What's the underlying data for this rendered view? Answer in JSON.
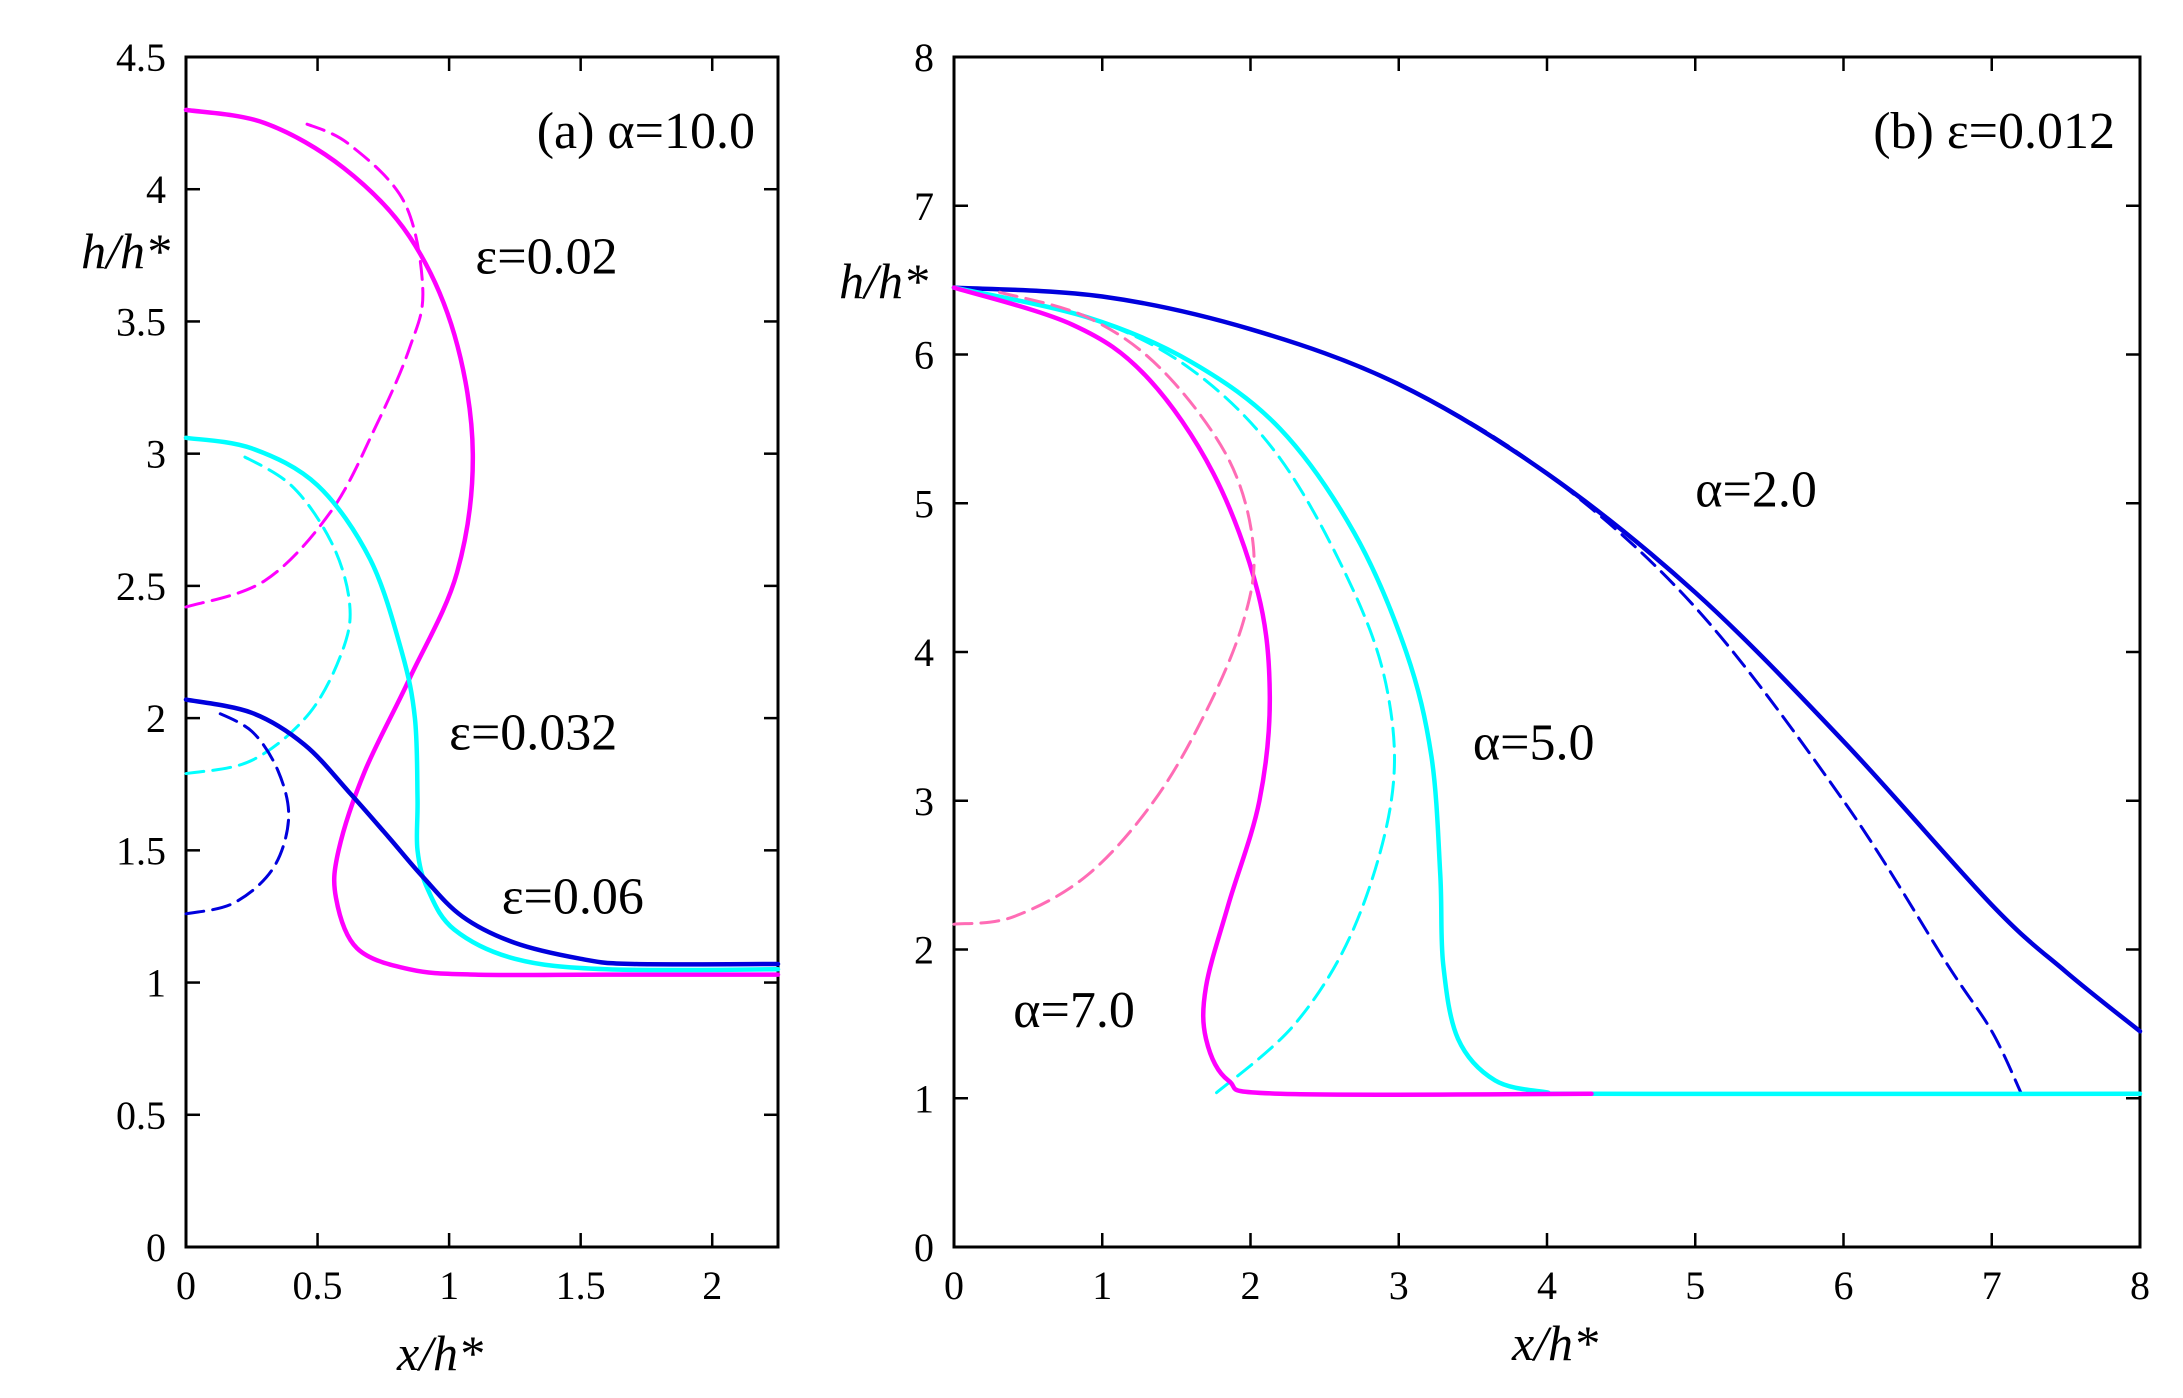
{
  "chart_data": [
    {
      "type": "line",
      "panel_label": "(a) α=10.0",
      "xlabel": "x/h*",
      "ylabel": "h/h*",
      "xlim": [
        0,
        2.25
      ],
      "ylim": [
        0,
        4.5
      ],
      "x_ticks": [
        "0",
        "0.5",
        "1",
        "1.5",
        "2"
      ],
      "y_ticks": [
        "0",
        "0.5",
        "1",
        "1.5",
        "2",
        "2.5",
        "3",
        "3.5",
        "4",
        "4.5"
      ],
      "x_tick_values": [
        0,
        0.5,
        1,
        1.5,
        2
      ],
      "y_tick_values": [
        0,
        0.5,
        1,
        1.5,
        2,
        2.5,
        3,
        3.5,
        4,
        4.5
      ],
      "annotations": [
        {
          "text": "ε=0.02",
          "x": 1.1,
          "y": 3.75
        },
        {
          "text": "ε=0.032",
          "x": 1.0,
          "y": 1.95
        },
        {
          "text": "ε=0.06",
          "x": 1.2,
          "y": 1.33
        }
      ],
      "series": [
        {
          "color": "#ff00ff",
          "style": "solid",
          "points": [
            [
              0,
              4.3
            ],
            [
              0.3,
              4.25
            ],
            [
              0.6,
              4.08
            ],
            [
              0.85,
              3.82
            ],
            [
              1.02,
              3.45
            ],
            [
              1.09,
              3.0
            ],
            [
              1.03,
              2.55
            ],
            [
              0.85,
              2.15
            ],
            [
              0.68,
              1.8
            ],
            [
              0.58,
              1.5
            ],
            [
              0.57,
              1.32
            ],
            [
              0.65,
              1.13
            ],
            [
              0.85,
              1.05
            ],
            [
              1.1,
              1.03
            ],
            [
              1.6,
              1.03
            ],
            [
              2.25,
              1.03
            ]
          ]
        },
        {
          "color": "#ff00ff",
          "style": "dashed",
          "points": [
            [
              0,
              2.42
            ],
            [
              0.3,
              2.52
            ],
            [
              0.55,
              2.78
            ],
            [
              0.72,
              3.1
            ],
            [
              0.85,
              3.4
            ],
            [
              0.9,
              3.62
            ],
            [
              0.83,
              3.95
            ],
            [
              0.62,
              4.17
            ],
            [
              0.45,
              4.25
            ]
          ]
        },
        {
          "color": "#00ffff",
          "style": "solid",
          "points": [
            [
              0,
              3.06
            ],
            [
              0.25,
              3.02
            ],
            [
              0.5,
              2.88
            ],
            [
              0.7,
              2.6
            ],
            [
              0.82,
              2.25
            ],
            [
              0.87,
              2.0
            ],
            [
              0.88,
              1.7
            ],
            [
              0.88,
              1.5
            ],
            [
              0.92,
              1.35
            ],
            [
              1.02,
              1.2
            ],
            [
              1.25,
              1.09
            ],
            [
              1.6,
              1.05
            ],
            [
              2.25,
              1.05
            ]
          ]
        },
        {
          "color": "#00ffff",
          "style": "dashed",
          "points": [
            [
              0,
              1.79
            ],
            [
              0.25,
              1.84
            ],
            [
              0.47,
              2.02
            ],
            [
              0.6,
              2.27
            ],
            [
              0.62,
              2.45
            ],
            [
              0.55,
              2.67
            ],
            [
              0.4,
              2.88
            ],
            [
              0.2,
              3.0
            ]
          ]
        },
        {
          "color": "#0000dd",
          "style": "solid",
          "points": [
            [
              0,
              2.07
            ],
            [
              0.25,
              2.02
            ],
            [
              0.45,
              1.9
            ],
            [
              0.62,
              1.72
            ],
            [
              0.77,
              1.55
            ],
            [
              0.9,
              1.4
            ],
            [
              1.05,
              1.25
            ],
            [
              1.25,
              1.15
            ],
            [
              1.5,
              1.09
            ],
            [
              1.7,
              1.07
            ],
            [
              2.25,
              1.07
            ]
          ]
        },
        {
          "color": "#0000dd",
          "style": "dashed",
          "points": [
            [
              0,
              1.26
            ],
            [
              0.18,
              1.3
            ],
            [
              0.33,
              1.43
            ],
            [
              0.39,
              1.62
            ],
            [
              0.35,
              1.8
            ],
            [
              0.25,
              1.95
            ],
            [
              0.1,
              2.03
            ]
          ]
        }
      ]
    },
    {
      "type": "line",
      "panel_label": "(b) ε=0.012",
      "xlabel": "x/h*",
      "ylabel": "h/h*",
      "xlim": [
        0,
        8
      ],
      "ylim": [
        0,
        8
      ],
      "x_ticks": [
        "0",
        "1",
        "2",
        "3",
        "4",
        "5",
        "6",
        "7",
        "8"
      ],
      "y_ticks": [
        "0",
        "1",
        "2",
        "3",
        "4",
        "5",
        "6",
        "7",
        "8"
      ],
      "x_tick_values": [
        0,
        1,
        2,
        3,
        4,
        5,
        6,
        7,
        8
      ],
      "y_tick_values": [
        0,
        1,
        2,
        3,
        4,
        5,
        6,
        7,
        8
      ],
      "annotations": [
        {
          "text": "α=2.0",
          "x": 5.0,
          "y": 5.1
        },
        {
          "text": "α=5.0",
          "x": 3.5,
          "y": 3.4
        },
        {
          "text": "α=7.0",
          "x": 0.4,
          "y": 1.6
        }
      ],
      "series": [
        {
          "color": "#0000dd",
          "style": "solid",
          "points": [
            [
              0,
              6.45
            ],
            [
              1,
              6.39
            ],
            [
              2,
              6.17
            ],
            [
              3,
              5.8
            ],
            [
              4,
              5.2
            ],
            [
              5,
              4.4
            ],
            [
              6,
              3.4
            ],
            [
              7,
              2.3
            ],
            [
              7.5,
              1.85
            ],
            [
              8,
              1.45
            ]
          ]
        },
        {
          "color": "#0000dd",
          "style": "dashed",
          "points": [
            [
              0,
              6.45
            ],
            [
              1,
              6.39
            ],
            [
              2,
              6.17
            ],
            [
              3,
              5.8
            ],
            [
              4,
              5.2
            ],
            [
              5,
              4.3
            ],
            [
              6,
              3.0
            ],
            [
              6.7,
              1.9
            ],
            [
              7.0,
              1.45
            ],
            [
              7.2,
              1.03
            ]
          ]
        },
        {
          "color": "#00ffff",
          "style": "solid",
          "points": [
            [
              0,
              6.45
            ],
            [
              0.9,
              6.25
            ],
            [
              1.6,
              5.95
            ],
            [
              2.2,
              5.5
            ],
            [
              2.7,
              4.8
            ],
            [
              3.05,
              4.0
            ],
            [
              3.22,
              3.3
            ],
            [
              3.28,
              2.5
            ],
            [
              3.3,
              1.9
            ],
            [
              3.4,
              1.4
            ],
            [
              3.65,
              1.12
            ],
            [
              4.0,
              1.04
            ],
            [
              4.2,
              1.03
            ],
            [
              8,
              1.03
            ]
          ]
        },
        {
          "color": "#00ffff",
          "style": "dashed",
          "points": [
            [
              0,
              6.45
            ],
            [
              0.9,
              6.25
            ],
            [
              1.6,
              5.9
            ],
            [
              2.2,
              5.3
            ],
            [
              2.7,
              4.4
            ],
            [
              2.93,
              3.7
            ],
            [
              2.95,
              3.0
            ],
            [
              2.7,
              2.15
            ],
            [
              2.3,
              1.5
            ],
            [
              1.75,
              1.02
            ]
          ]
        },
        {
          "color": "#ff00ff",
          "style": "solid",
          "points": [
            [
              0,
              6.45
            ],
            [
              0.8,
              6.2
            ],
            [
              1.3,
              5.85
            ],
            [
              1.75,
              5.2
            ],
            [
              2.05,
              4.4
            ],
            [
              2.13,
              3.7
            ],
            [
              2.06,
              3.0
            ],
            [
              1.85,
              2.3
            ],
            [
              1.7,
              1.75
            ],
            [
              1.7,
              1.4
            ],
            [
              1.85,
              1.12
            ],
            [
              2.2,
              1.03
            ],
            [
              4.3,
              1.03
            ]
          ]
        },
        {
          "color": "#ff6cb5",
          "style": "dashed",
          "points": [
            [
              0,
              2.17
            ],
            [
              0.4,
              2.22
            ],
            [
              0.9,
              2.5
            ],
            [
              1.35,
              3.0
            ],
            [
              1.7,
              3.6
            ],
            [
              1.95,
              4.2
            ],
            [
              2.02,
              4.7
            ],
            [
              1.85,
              5.3
            ],
            [
              1.4,
              5.9
            ],
            [
              0.9,
              6.25
            ],
            [
              0.3,
              6.42
            ]
          ]
        }
      ]
    }
  ]
}
